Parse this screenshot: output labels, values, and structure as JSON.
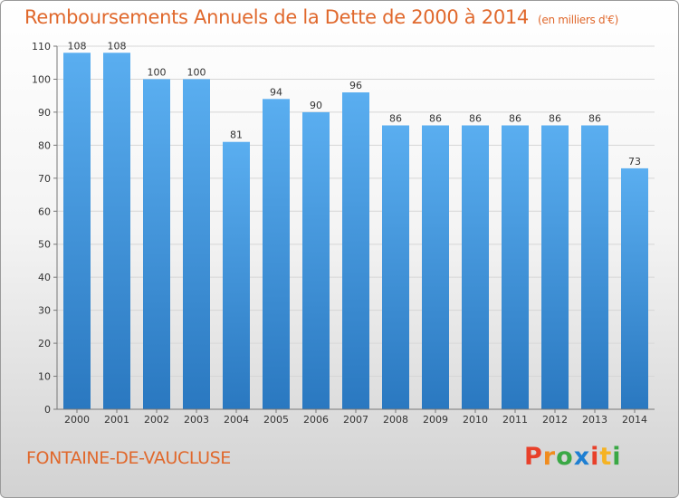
{
  "chart_data": {
    "type": "bar",
    "title": "Remboursements Annuels de la Dette de 2000 à 2014",
    "unit_label": "(en milliers d'€)",
    "xlabel": "",
    "ylabel": "",
    "categories": [
      "2000",
      "2001",
      "2002",
      "2003",
      "2004",
      "2005",
      "2006",
      "2007",
      "2008",
      "2009",
      "2010",
      "2011",
      "2012",
      "2013",
      "2014"
    ],
    "values": [
      108,
      108,
      100,
      100,
      81,
      94,
      90,
      96,
      86,
      86,
      86,
      86,
      86,
      86,
      73
    ],
    "ylim": [
      0,
      110
    ],
    "yticks": [
      0,
      10,
      20,
      30,
      40,
      50,
      60,
      70,
      80,
      90,
      100,
      110
    ],
    "grid": true,
    "bar_color_top": "#5aaef0",
    "bar_color_bottom": "#2a78c0"
  },
  "footer": {
    "town": "FONTAINE-DE-VAUCLUSE",
    "logo_letters": [
      "P",
      "r",
      "o",
      "x",
      "i",
      "t",
      "i"
    ],
    "logo_colors": [
      "#e8402a",
      "#f08c1e",
      "#3aa845",
      "#1e7fd2",
      "#e8402a",
      "#f5b324",
      "#3aa845"
    ]
  }
}
